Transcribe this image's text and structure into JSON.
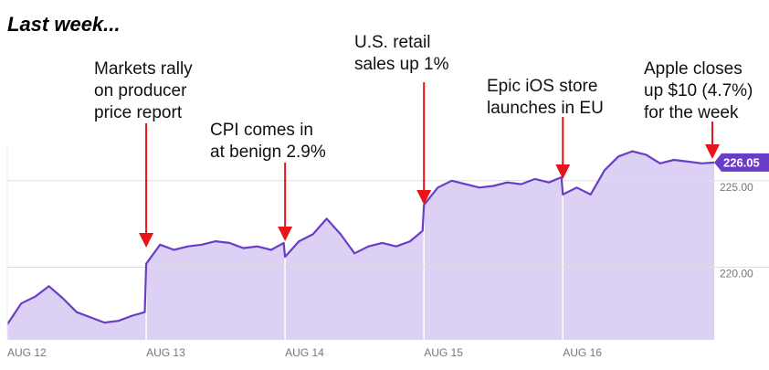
{
  "chart_data": {
    "type": "area",
    "title": "Last week...",
    "x": [
      0,
      0.1,
      0.2,
      0.3,
      0.4,
      0.5,
      0.6,
      0.7,
      0.8,
      0.9,
      0.99,
      1,
      1.1,
      1.2,
      1.3,
      1.4,
      1.5,
      1.6,
      1.7,
      1.8,
      1.9,
      1.99,
      2,
      2.1,
      2.2,
      2.3,
      2.4,
      2.5,
      2.6,
      2.7,
      2.8,
      2.9,
      2.99,
      3,
      3.1,
      3.2,
      3.3,
      3.4,
      3.5,
      3.6,
      3.7,
      3.8,
      3.9,
      3.99,
      4,
      4.1,
      4.2,
      4.3,
      4.4,
      4.5,
      4.6,
      4.7,
      4.8,
      4.9,
      5.0,
      5.09
    ],
    "series": [
      {
        "color": "#6a3dc8",
        "fill": "#dcd1f4",
        "values": [
          216.7,
          217.9,
          218.3,
          218.9,
          218.2,
          217.4,
          217.1,
          216.8,
          216.9,
          217.2,
          217.4,
          220.2,
          221.3,
          221.0,
          221.2,
          221.3,
          221.5,
          221.4,
          221.1,
          221.2,
          221.0,
          221.4,
          220.6,
          221.5,
          221.9,
          222.8,
          221.9,
          220.8,
          221.2,
          221.4,
          221.2,
          221.5,
          222.1,
          223.6,
          224.6,
          225.0,
          224.8,
          224.6,
          224.7,
          224.9,
          224.8,
          225.1,
          224.9,
          225.2,
          224.2,
          224.6,
          224.2,
          225.6,
          226.4,
          226.7,
          226.5,
          226.0,
          226.2,
          226.1,
          226.0,
          226.05
        ]
      }
    ],
    "xlim": [
      0,
      5.09
    ],
    "xticks": [
      {
        "value": 0,
        "label": "AUG 12"
      },
      {
        "value": 1,
        "label": "AUG 13"
      },
      {
        "value": 2,
        "label": "AUG 14"
      },
      {
        "value": 3,
        "label": "AUG 15"
      },
      {
        "value": 4,
        "label": "AUG 16"
      }
    ],
    "ylim": [
      215.8,
      227.1
    ],
    "yticks": [
      {
        "value": 220,
        "label": "220.00"
      },
      {
        "value": 225,
        "label": "225.00"
      }
    ],
    "grid": true,
    "annotations": [
      {
        "text": [
          "Markets rally",
          "on producer",
          "price report"
        ],
        "x": 1
      },
      {
        "text": [
          "CPI comes in",
          "at benign 2.9%"
        ],
        "x": 2
      },
      {
        "text": [
          "U.S. retail",
          "sales up 1%"
        ],
        "x": 3
      },
      {
        "text": [
          "Epic iOS store",
          "launches in EU"
        ],
        "x": 4
      },
      {
        "text": [
          "Apple closes",
          "up $10 (4.7%)",
          "for the week"
        ],
        "x": 5.09
      }
    ]
  }
}
